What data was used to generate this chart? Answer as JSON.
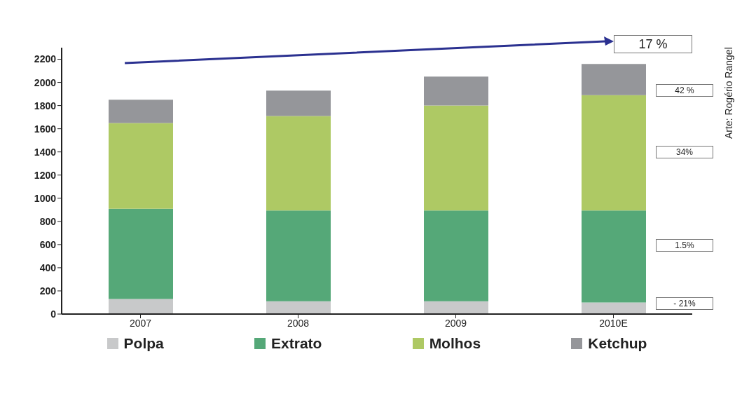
{
  "chart_data": {
    "type": "bar",
    "stacked": true,
    "categories": [
      "2007",
      "2008",
      "2009",
      "2010E"
    ],
    "series": [
      {
        "name": "Polpa",
        "color": "#c8c9ca",
        "values": [
          130,
          110,
          110,
          100
        ]
      },
      {
        "name": "Extrato",
        "color": "#55a878",
        "values": [
          780,
          785,
          785,
          795
        ]
      },
      {
        "name": "Molhos",
        "color": "#aec964",
        "values": [
          740,
          815,
          905,
          995
        ]
      },
      {
        "name": "Ketchup",
        "color": "#95969a",
        "values": [
          200,
          220,
          250,
          270
        ]
      }
    ],
    "ylim": [
      0,
      2300
    ],
    "yticks": [
      0,
      200,
      400,
      600,
      800,
      1000,
      1200,
      1400,
      1600,
      1800,
      2000,
      2200
    ],
    "legend": "bottom",
    "annotations": [
      "17 %",
      "Arte: Rogério Rangel",
      "42 %",
      "34%",
      "1.5%",
      "- 21%"
    ]
  }
}
